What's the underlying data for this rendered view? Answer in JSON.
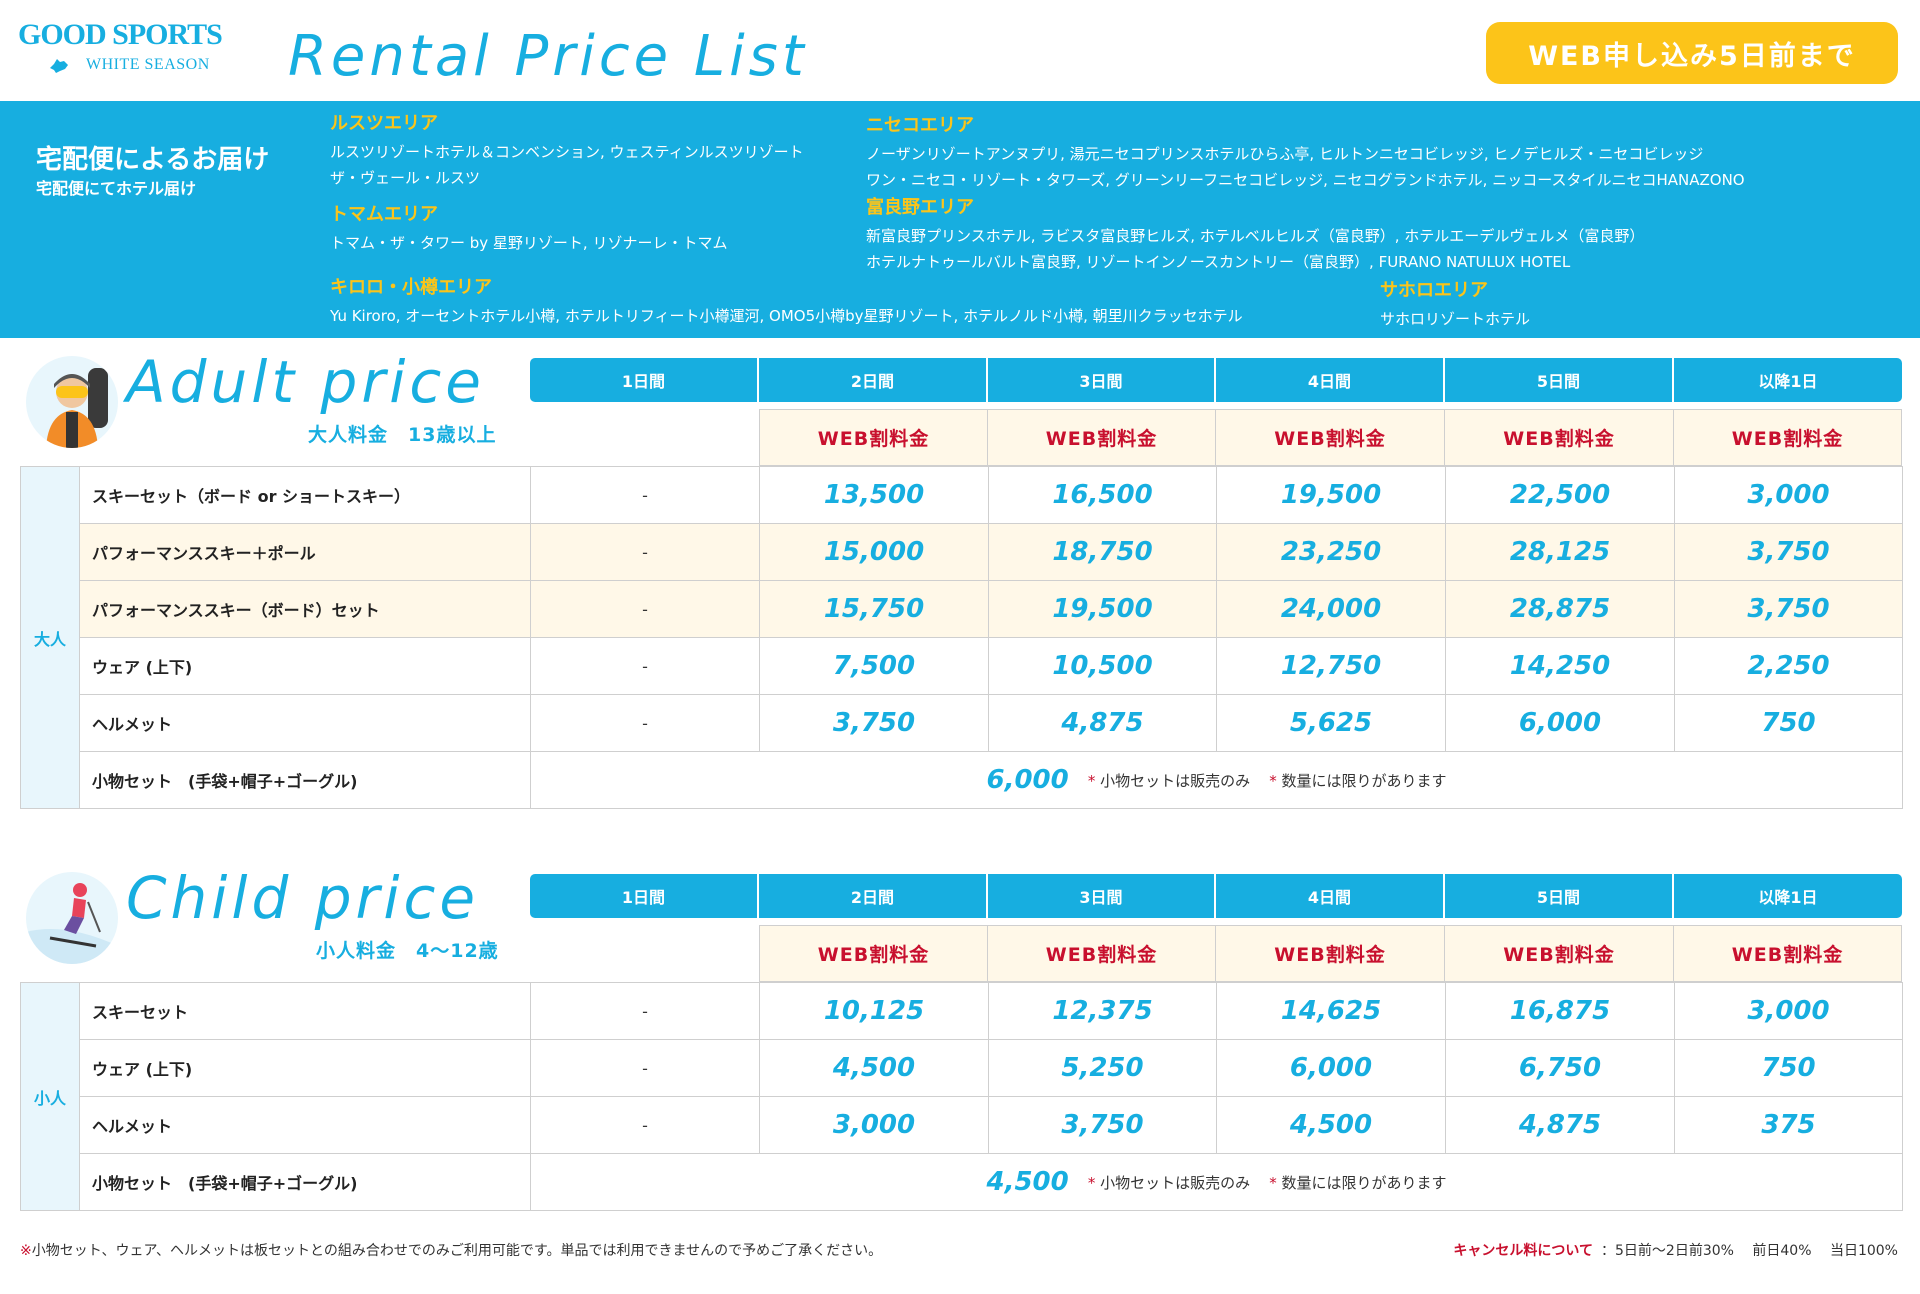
{
  "header": {
    "logo_main": "GOOD SPORTS",
    "logo_sub": "WHITE SEASON",
    "title": "Rental Price List",
    "web_badge": "WEB申し込み5日前まで"
  },
  "delivery": {
    "lead": "宅配便によるお届け",
    "sub": "宅配便にてホテル届け",
    "areas": [
      {
        "name": "ルスツエリア",
        "lines": [
          "ルスツリゾートホテル＆コンベンション, ウェスティンルスツリゾート",
          "ザ・ヴェール・ルスツ"
        ]
      },
      {
        "name": "トマムエリア",
        "lines": [
          "トマム・ザ・タワー by 星野リゾート, リゾナーレ・トマム"
        ]
      },
      {
        "name": "キロロ・小樽エリア",
        "lines": [
          "Yu Kiroro, オーセントホテル小樽, ホテルトリフィート小樽運河, OMO5小樽by星野リゾート, ホテルノルド小樽, 朝里川クラッセホテル"
        ]
      },
      {
        "name": "ニセコエリア",
        "lines": [
          "ノーザンリゾートアンヌプリ, 湯元ニセコプリンスホテルひらふ亭, ヒルトンニセコビレッジ, ヒノデヒルズ・ニセコビレッジ",
          "ワン・ニセコ・リゾート・タワーズ, グリーンリーフニセコビレッジ, ニセコグランドホテル, ニッコースタイルニセコHANAZONO"
        ]
      },
      {
        "name": "富良野エリア",
        "lines": [
          "新富良野プリンスホテル, ラビスタ富良野ヒルズ, ホテルベルヒルズ（富良野）, ホテルエーデルヴェルメ（富良野）",
          "ホテルナトゥールバルト富良野, リゾートインノースカントリー（富良野）, FURANO NATULUX HOTEL"
        ]
      },
      {
        "name": "サホロエリア",
        "lines": [
          "サホロリゾートホテル"
        ]
      }
    ]
  },
  "columns": [
    "1日間",
    "2日間",
    "3日間",
    "4日間",
    "5日間",
    "以降1日"
  ],
  "web_label": "WEB割料金",
  "adult": {
    "title": "Adult price",
    "subtitle": "大人料金　13歳以上",
    "group": "大人",
    "rows": [
      {
        "name": "スキーセット（ボード or ショートスキー）",
        "d1": "-",
        "prices": [
          "13,500",
          "16,500",
          "19,500",
          "22,500",
          "3,000"
        ]
      },
      {
        "name": "パフォーマンススキー＋ポール",
        "d1": "-",
        "prices": [
          "15,000",
          "18,750",
          "23,250",
          "28,125",
          "3,750"
        ]
      },
      {
        "name": "パフォーマンススキー（ボード）セット",
        "d1": "-",
        "prices": [
          "15,750",
          "19,500",
          "24,000",
          "28,875",
          "3,750"
        ]
      },
      {
        "name": "ウェア (上下)",
        "d1": "-",
        "prices": [
          "7,500",
          "10,500",
          "12,750",
          "14,250",
          "2,250"
        ]
      },
      {
        "name": "ヘルメット",
        "d1": "-",
        "prices": [
          "3,750",
          "4,875",
          "5,625",
          "6,000",
          "750"
        ]
      }
    ],
    "accessory": {
      "name": "小物セット　(手袋+帽子+ゴーグル)",
      "price": "6,000",
      "note1": "小物セットは販売のみ",
      "note2": "数量には限りがあります"
    }
  },
  "child": {
    "title": "Child price",
    "subtitle": "小人料金　4〜12歳",
    "group": "小人",
    "rows": [
      {
        "name": "スキーセット",
        "d1": "-",
        "prices": [
          "10,125",
          "12,375",
          "14,625",
          "16,875",
          "3,000"
        ]
      },
      {
        "name": "ウェア (上下)",
        "d1": "-",
        "prices": [
          "4,500",
          "5,250",
          "6,000",
          "6,750",
          "750"
        ]
      },
      {
        "name": "ヘルメット",
        "d1": "-",
        "prices": [
          "3,000",
          "3,750",
          "4,500",
          "4,875",
          "375"
        ]
      }
    ],
    "accessory": {
      "name": "小物セット　(手袋+帽子+ゴーグル)",
      "price": "4,500",
      "note1": "小物セットは販売のみ",
      "note2": "数量には限りがあります"
    }
  },
  "footer": {
    "note": "小物セット、ウェア、ヘルメットは板セットとの組み合わせでのみご利用可能です。単品では利用できませんので予めご了承ください。",
    "cancel_label": "キャンセル料について",
    "cancel_detail": "：5日前〜2日前30%　 前日40%　 当日100%"
  },
  "colors": {
    "accent": "#17aee0",
    "yellow": "#fcc419",
    "red": "#c8102e",
    "cream": "#fff8e8"
  }
}
